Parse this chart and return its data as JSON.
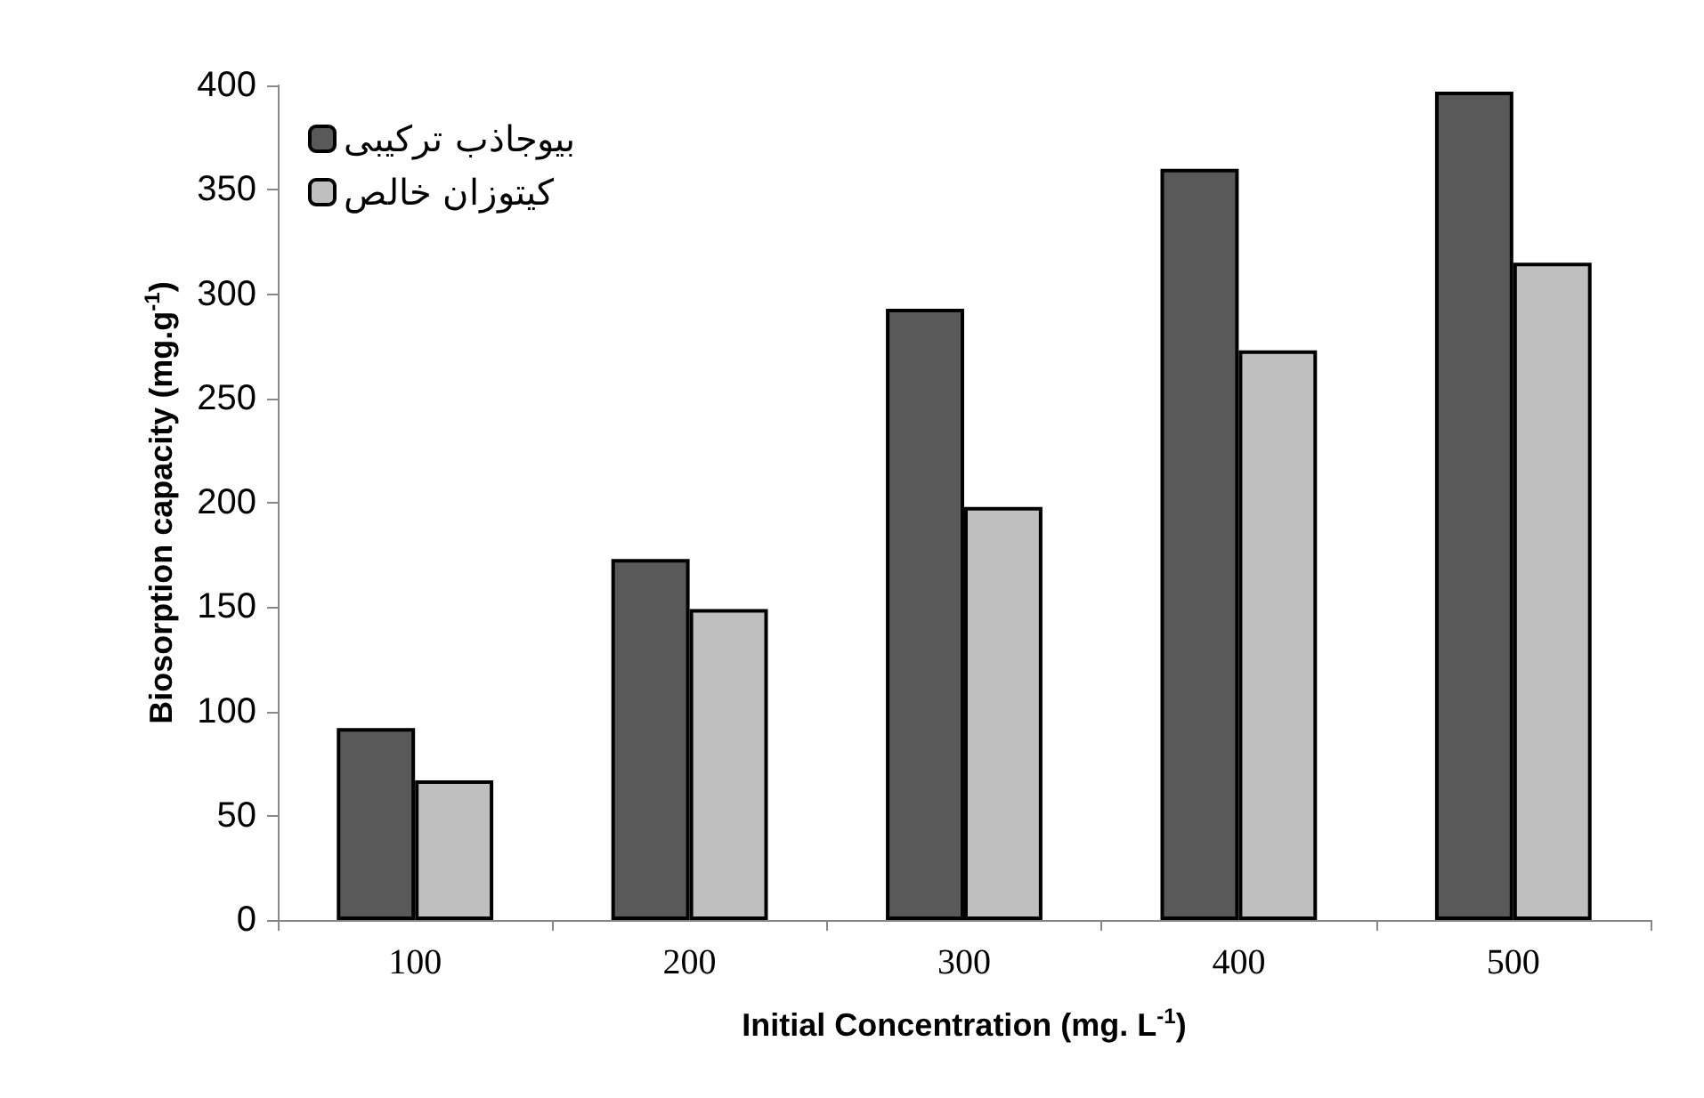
{
  "chart_data": {
    "type": "bar",
    "xlabel": "Initial Concentration (mg. L$^{-1}$)",
    "ylabel": "Biosorption capacity (mg.g$^{-1}$)",
    "categories": [
      "100",
      "200",
      "300",
      "400",
      "500"
    ],
    "series": [
      {
        "name": "بیوجاذب ترکیبی",
        "color": "#595959",
        "values": [
          92,
          173,
          293,
          360,
          397
        ]
      },
      {
        "name": "کیتوزان خالص",
        "color": "#bfbfbf",
        "values": [
          67,
          149,
          198,
          273,
          315
        ]
      }
    ],
    "ylim": [
      0,
      400
    ],
    "yticks": [
      0,
      50,
      100,
      150,
      200,
      250,
      300,
      350,
      400
    ],
    "grid": false,
    "legend": "top left"
  }
}
